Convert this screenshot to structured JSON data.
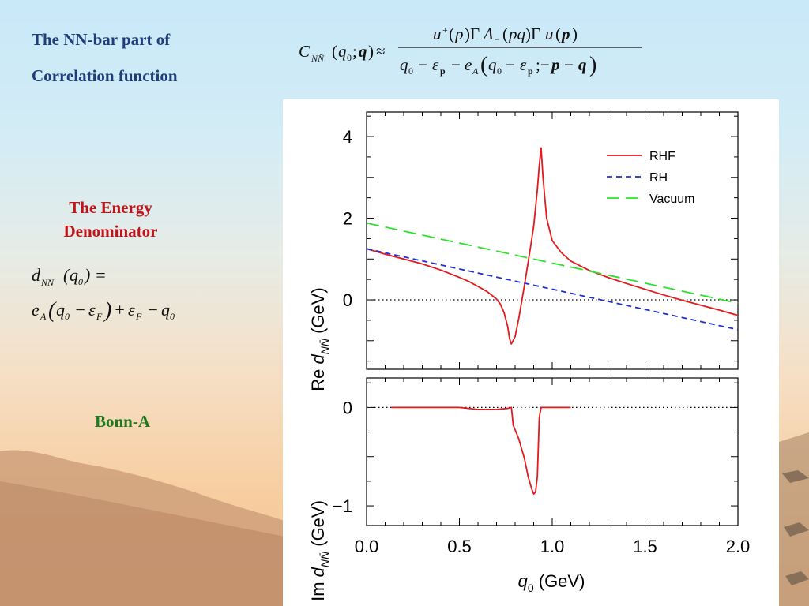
{
  "slide": {
    "title_line1": "The NN-bar part of",
    "title_line2": "Correlation function",
    "energy_line1": "The Energy",
    "energy_line2": "Denominator",
    "model": "Bonn-A",
    "colors": {
      "title": "#1f3d7a",
      "energy": "#c0141a",
      "model": "#1f7a1f"
    }
  },
  "chart_data": [
    {
      "type": "line",
      "panel": "top",
      "xlabel": "q0  (GeV)",
      "ylabel": "Re dNN̄ (GeV)",
      "xlim": [
        0.0,
        2.0
      ],
      "ylim": [
        -1.7,
        4.6
      ],
      "yticks": [
        0,
        2,
        4
      ],
      "legend_position": "top-right",
      "series": [
        {
          "name": "RHF",
          "color": "#e41a1c",
          "style": "solid",
          "x": [
            0.0,
            0.1,
            0.2,
            0.3,
            0.4,
            0.5,
            0.55,
            0.6,
            0.65,
            0.7,
            0.72,
            0.74,
            0.76,
            0.77,
            0.78,
            0.8,
            0.82,
            0.85,
            0.88,
            0.9,
            0.92,
            0.93,
            0.94,
            0.95,
            0.97,
            1.0,
            1.05,
            1.1,
            1.2,
            1.3,
            1.4,
            1.5,
            1.6,
            1.7,
            1.8,
            1.9,
            2.0
          ],
          "y": [
            1.25,
            1.12,
            1.0,
            0.88,
            0.73,
            0.55,
            0.45,
            0.33,
            0.2,
            0.02,
            -0.1,
            -0.3,
            -0.65,
            -0.95,
            -1.08,
            -0.9,
            -0.45,
            0.35,
            1.2,
            1.8,
            2.7,
            3.3,
            3.72,
            3.0,
            2.0,
            1.45,
            1.15,
            0.95,
            0.72,
            0.55,
            0.4,
            0.26,
            0.12,
            -0.01,
            -0.13,
            -0.25,
            -0.38
          ]
        },
        {
          "name": "RH",
          "color": "#1f2fd6",
          "style": "dashed",
          "x": [
            0.0,
            2.0
          ],
          "y": [
            1.25,
            -0.73
          ]
        },
        {
          "name": "Vacuum",
          "color": "#2ee02e",
          "style": "long-dashed",
          "x": [
            0.0,
            2.0
          ],
          "y": [
            1.88,
            -0.08
          ]
        }
      ],
      "reference_line": {
        "y": 0,
        "style": "dotted"
      }
    },
    {
      "type": "line",
      "panel": "bottom",
      "xlabel": "q0  (GeV)",
      "ylabel": "Im dNN̄ (GeV)",
      "xlim": [
        0.0,
        2.0
      ],
      "ylim": [
        -1.2,
        0.3
      ],
      "xticks": [
        "0.0",
        "0.5",
        "1.0",
        "1.5",
        "2.0"
      ],
      "yticks": [
        0,
        -1
      ],
      "series": [
        {
          "name": "RHF",
          "color": "#e41a1c",
          "style": "solid",
          "x": [
            0.13,
            0.3,
            0.5,
            0.55,
            0.6,
            0.7,
            0.76,
            0.78,
            0.79,
            0.82,
            0.85,
            0.87,
            0.89,
            0.9,
            0.91,
            0.92,
            0.925,
            0.93,
            0.94,
            0.95,
            1.0,
            1.1
          ],
          "y": [
            0.0,
            0.0,
            0.0,
            -0.01,
            -0.02,
            -0.02,
            -0.01,
            0.0,
            -0.18,
            -0.32,
            -0.52,
            -0.7,
            -0.83,
            -0.88,
            -0.86,
            -0.7,
            -0.4,
            -0.1,
            0.0,
            0.0,
            0.0,
            0.0
          ]
        }
      ],
      "reference_line": {
        "y": 0,
        "style": "dotted"
      }
    }
  ]
}
